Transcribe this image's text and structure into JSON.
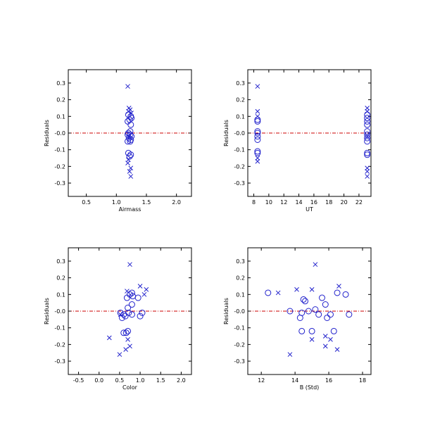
{
  "chart_data": [
    {
      "type": "scatter",
      "xlabel": "Airmass",
      "ylabel": "Residuals",
      "xlim": [
        0.2,
        2.25
      ],
      "ylim": [
        -0.38,
        0.38
      ],
      "xticks": [
        0.5,
        1.0,
        1.5,
        2.0
      ],
      "xtick_labels": [
        "0.5",
        "1.0",
        "1.5",
        "2.0"
      ],
      "yticks": [
        -0.3,
        -0.2,
        -0.1,
        0.0,
        0.1,
        0.2,
        0.3
      ],
      "ytick_labels": [
        "-0.3",
        "-0.2",
        "-0.1",
        "-0.0",
        "0.1",
        "0.2",
        "0.3"
      ],
      "zero_line": 0,
      "series": [
        {
          "marker": "circle",
          "points": [
            [
              1.2,
              0.11
            ],
            [
              1.24,
              0.1
            ],
            [
              1.22,
              0.08
            ],
            [
              1.19,
              0.07
            ],
            [
              1.25,
              0.09
            ],
            [
              1.24,
              0.05
            ],
            [
              1.2,
              0.0
            ],
            [
              1.23,
              -0.01
            ],
            [
              1.25,
              -0.02
            ],
            [
              1.21,
              -0.03
            ],
            [
              1.24,
              -0.04
            ],
            [
              1.19,
              -0.05
            ],
            [
              1.23,
              -0.05
            ],
            [
              1.2,
              -0.12
            ],
            [
              1.24,
              -0.13
            ],
            [
              1.22,
              -0.14
            ],
            [
              1.19,
              -0.01
            ],
            [
              1.23,
              0.01
            ]
          ]
        },
        {
          "marker": "cross",
          "points": [
            [
              1.19,
              0.28
            ],
            [
              1.21,
              0.15
            ],
            [
              1.23,
              0.14
            ],
            [
              1.2,
              0.13
            ],
            [
              1.25,
              0.12
            ],
            [
              1.2,
              -0.16
            ],
            [
              1.19,
              -0.18
            ],
            [
              1.24,
              -0.21
            ],
            [
              1.22,
              -0.23
            ],
            [
              1.24,
              -0.26
            ],
            [
              1.21,
              -0.02
            ]
          ]
        }
      ]
    },
    {
      "type": "scatter",
      "xlabel": "UT",
      "ylabel": "Residuals",
      "xlim": [
        7.2,
        23.6
      ],
      "ylim": [
        -0.38,
        0.38
      ],
      "xticks": [
        8,
        10,
        12,
        14,
        16,
        18,
        20,
        22
      ],
      "xtick_labels": [
        "8",
        "10",
        "12",
        "14",
        "16",
        "18",
        "20",
        "22"
      ],
      "yticks": [
        -0.3,
        -0.2,
        -0.1,
        0.0,
        0.1,
        0.2,
        0.3
      ],
      "ytick_labels": [
        "-0.3",
        "-0.2",
        "-0.1",
        "-0.0",
        "0.1",
        "0.2",
        "0.3"
      ],
      "zero_line": 0,
      "series": [
        {
          "marker": "circle",
          "points": [
            [
              8.5,
              0.08
            ],
            [
              8.5,
              0.07
            ],
            [
              8.5,
              0.01
            ],
            [
              8.5,
              0.0
            ],
            [
              8.5,
              -0.02
            ],
            [
              8.5,
              -0.04
            ],
            [
              8.5,
              -0.11
            ],
            [
              8.5,
              -0.12
            ],
            [
              23.1,
              0.11
            ],
            [
              23.1,
              0.09
            ],
            [
              23.1,
              0.07
            ],
            [
              23.1,
              0.05
            ],
            [
              23.1,
              0.01
            ],
            [
              23.1,
              -0.01
            ],
            [
              23.1,
              -0.03
            ],
            [
              23.1,
              -0.05
            ],
            [
              23.1,
              -0.12
            ],
            [
              23.1,
              -0.13
            ]
          ]
        },
        {
          "marker": "cross",
          "points": [
            [
              8.5,
              0.28
            ],
            [
              8.5,
              0.13
            ],
            [
              8.5,
              0.1
            ],
            [
              8.5,
              -0.15
            ],
            [
              8.5,
              -0.17
            ],
            [
              23.1,
              0.15
            ],
            [
              23.1,
              0.13
            ],
            [
              23.1,
              -0.21
            ],
            [
              23.1,
              -0.23
            ],
            [
              23.1,
              -0.26
            ],
            [
              23.1,
              -0.02
            ]
          ]
        }
      ]
    },
    {
      "type": "scatter",
      "xlabel": "Color",
      "ylabel": "Residuals",
      "xlim": [
        -0.75,
        2.25
      ],
      "ylim": [
        -0.38,
        0.38
      ],
      "xticks": [
        -0.5,
        0.0,
        0.5,
        1.0,
        1.5,
        2.0
      ],
      "xtick_labels": [
        "-0.5",
        "0.0",
        "0.5",
        "1.0",
        "1.5",
        "2.0"
      ],
      "yticks": [
        -0.3,
        -0.2,
        -0.1,
        0.0,
        0.1,
        0.2,
        0.3
      ],
      "ytick_labels": [
        "-0.3",
        "-0.2",
        "-0.1",
        "-0.0",
        "0.1",
        "0.2",
        "0.3"
      ],
      "zero_line": 0,
      "series": [
        {
          "marker": "circle",
          "points": [
            [
              0.75,
              0.1
            ],
            [
              0.8,
              0.11
            ],
            [
              0.82,
              0.09
            ],
            [
              0.68,
              0.08
            ],
            [
              0.95,
              0.08
            ],
            [
              0.8,
              0.04
            ],
            [
              0.7,
              0.02
            ],
            [
              0.72,
              -0.01
            ],
            [
              0.52,
              -0.01
            ],
            [
              0.6,
              -0.02
            ],
            [
              0.64,
              -0.03
            ],
            [
              0.56,
              -0.04
            ],
            [
              0.8,
              -0.02
            ],
            [
              1.05,
              -0.01
            ],
            [
              1.0,
              -0.03
            ],
            [
              0.7,
              -0.12
            ],
            [
              0.6,
              -0.13
            ],
            [
              0.66,
              -0.13
            ]
          ]
        },
        {
          "marker": "cross",
          "points": [
            [
              0.75,
              0.28
            ],
            [
              1.0,
              0.15
            ],
            [
              1.15,
              0.13
            ],
            [
              0.68,
              0.12
            ],
            [
              1.1,
              0.1
            ],
            [
              0.25,
              -0.16
            ],
            [
              0.7,
              -0.17
            ],
            [
              0.75,
              -0.21
            ],
            [
              0.65,
              -0.23
            ],
            [
              0.5,
              -0.26
            ],
            [
              0.52,
              -0.02
            ]
          ]
        }
      ]
    },
    {
      "type": "scatter",
      "xlabel": "B (Std)",
      "ylabel": "Residuals",
      "xlim": [
        11.2,
        18.5
      ],
      "ylim": [
        -0.38,
        0.38
      ],
      "xticks": [
        12,
        14,
        16,
        18
      ],
      "xtick_labels": [
        "12",
        "14",
        "16",
        "18"
      ],
      "yticks": [
        -0.3,
        -0.2,
        -0.1,
        0.0,
        0.1,
        0.2,
        0.3
      ],
      "ytick_labels": [
        "-0.3",
        "-0.2",
        "-0.1",
        "-0.0",
        "0.1",
        "0.2",
        "0.3"
      ],
      "zero_line": 0,
      "series": [
        {
          "marker": "circle",
          "points": [
            [
              12.4,
              0.11
            ],
            [
              16.5,
              0.11
            ],
            [
              17.0,
              0.1
            ],
            [
              15.6,
              0.08
            ],
            [
              14.5,
              0.07
            ],
            [
              14.6,
              0.06
            ],
            [
              15.8,
              0.04
            ],
            [
              13.7,
              0.0
            ],
            [
              15.2,
              0.01
            ],
            [
              14.8,
              0.0
            ],
            [
              14.4,
              -0.01
            ],
            [
              15.4,
              -0.02
            ],
            [
              16.1,
              -0.02
            ],
            [
              17.2,
              -0.02
            ],
            [
              14.3,
              -0.04
            ],
            [
              15.9,
              -0.04
            ],
            [
              14.4,
              -0.12
            ],
            [
              15.0,
              -0.12
            ],
            [
              16.3,
              -0.12
            ]
          ]
        },
        {
          "marker": "cross",
          "points": [
            [
              15.2,
              0.28
            ],
            [
              16.6,
              0.15
            ],
            [
              15.0,
              0.13
            ],
            [
              14.1,
              0.13
            ],
            [
              13.0,
              0.11
            ],
            [
              15.8,
              -0.15
            ],
            [
              16.1,
              -0.17
            ],
            [
              15.0,
              -0.17
            ],
            [
              15.8,
              -0.21
            ],
            [
              16.5,
              -0.23
            ],
            [
              13.7,
              -0.26
            ]
          ]
        }
      ]
    }
  ]
}
